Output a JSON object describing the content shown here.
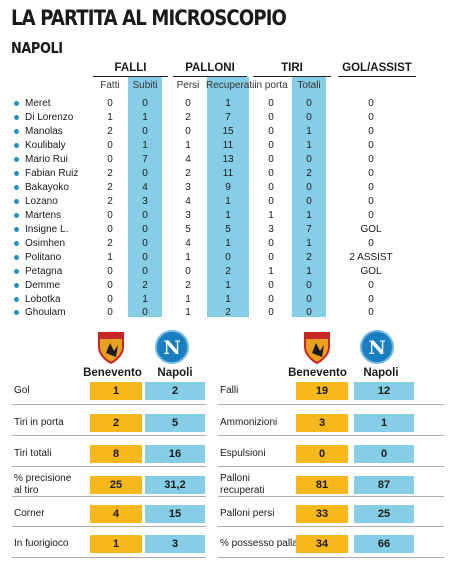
{
  "header": {
    "title": "LA PARTITA AL MICROSCOPIO",
    "team": "NAPOLI"
  },
  "table": {
    "groups": [
      "FALLI",
      "PALLONI",
      "TIRI",
      "GOL/ASSIST"
    ],
    "subheaders": [
      "Fatti",
      "Subiti",
      "Persi",
      "Recuperati",
      "in porta",
      "Totali"
    ],
    "players": [
      {
        "name": "Meret",
        "fatti": "0",
        "subiti": "0",
        "persi": "0",
        "recuperati": "1",
        "inporta": "0",
        "totali": "0",
        "gol": "0"
      },
      {
        "name": "Di Lorenzo",
        "fatti": "1",
        "subiti": "1",
        "persi": "2",
        "recuperati": "7",
        "inporta": "0",
        "totali": "0",
        "gol": "0"
      },
      {
        "name": "Manolas",
        "fatti": "2",
        "subiti": "0",
        "persi": "0",
        "recuperati": "15",
        "inporta": "0",
        "totali": "1",
        "gol": "0"
      },
      {
        "name": "Koulibaly",
        "fatti": "0",
        "subiti": "1",
        "persi": "1",
        "recuperati": "11",
        "inporta": "0",
        "totali": "1",
        "gol": "0"
      },
      {
        "name": "Mario Rui",
        "fatti": "0",
        "subiti": "7",
        "persi": "4",
        "recuperati": "13",
        "inporta": "0",
        "totali": "0",
        "gol": "0"
      },
      {
        "name": "Fabian Ruiz",
        "fatti": "2",
        "subiti": "0",
        "persi": "2",
        "recuperati": "11",
        "inporta": "0",
        "totali": "2",
        "gol": "0"
      },
      {
        "name": "Bakayoko",
        "fatti": "2",
        "subiti": "4",
        "persi": "3",
        "recuperati": "9",
        "inporta": "0",
        "totali": "0",
        "gol": "0"
      },
      {
        "name": "Lozano",
        "fatti": "2",
        "subiti": "3",
        "persi": "4",
        "recuperati": "1",
        "inporta": "0",
        "totali": "0",
        "gol": "0"
      },
      {
        "name": "Martens",
        "fatti": "0",
        "subiti": "0",
        "persi": "3",
        "recuperati": "1",
        "inporta": "1",
        "totali": "1",
        "gol": "0"
      },
      {
        "name": "Insigne L.",
        "fatti": "0",
        "subiti": "0",
        "persi": "5",
        "recuperati": "5",
        "inporta": "3",
        "totali": "7",
        "gol": "GOL"
      },
      {
        "name": "Osimhen",
        "fatti": "2",
        "subiti": "0",
        "persi": "4",
        "recuperati": "1",
        "inporta": "0",
        "totali": "1",
        "gol": "0"
      },
      {
        "name": "Politano",
        "fatti": "1",
        "subiti": "0",
        "persi": "1",
        "recuperati": "0",
        "inporta": "0",
        "totali": "2",
        "gol": "2 ASSIST"
      },
      {
        "name": "Petagna",
        "fatti": "0",
        "subiti": "0",
        "persi": "0",
        "recuperati": "2",
        "inporta": "1",
        "totali": "1",
        "gol": "GOL"
      },
      {
        "name": "Demme",
        "fatti": "0",
        "subiti": "2",
        "persi": "2",
        "recuperati": "1",
        "inporta": "0",
        "totali": "0",
        "gol": "0"
      },
      {
        "name": "Lobotka",
        "fatti": "0",
        "subiti": "1",
        "persi": "1",
        "recuperati": "1",
        "inporta": "0",
        "totali": "0",
        "gol": "0"
      },
      {
        "name": "Ghoulam",
        "fatti": "0",
        "subiti": "0",
        "persi": "1",
        "recuperati": "2",
        "inporta": "0",
        "totali": "0",
        "gol": "0"
      }
    ]
  },
  "teams": {
    "home": "Benevento",
    "away": "Napoli"
  },
  "stats_left": [
    {
      "label": "Gol",
      "home": "1",
      "away": "2"
    },
    {
      "label": "Tiri in porta",
      "home": "2",
      "away": "5"
    },
    {
      "label": "Tiri totali",
      "home": "8",
      "away": "16"
    },
    {
      "label": "% precisione al tiro",
      "label_1": "% precisione",
      "label_2": "al tiro",
      "home": "25",
      "away": "31,2"
    },
    {
      "label": "Corner",
      "home": "4",
      "away": "15"
    },
    {
      "label": "In fuorigioco",
      "home": "1",
      "away": "3"
    }
  ],
  "stats_right": [
    {
      "label": "Falli",
      "home": "19",
      "away": "12"
    },
    {
      "label": "Ammonizioni",
      "home": "3",
      "away": "1"
    },
    {
      "label": "Espulsioni",
      "home": "0",
      "away": "0"
    },
    {
      "label": "Palloni recuperati",
      "label_1": "Palloni",
      "label_2": "recuperati",
      "home": "81",
      "away": "87"
    },
    {
      "label": "Palloni persi",
      "home": "33",
      "away": "25"
    },
    {
      "label": "% possesso palla",
      "home": "34",
      "away": "66"
    }
  ],
  "colors": {
    "home_accent": "#f6b81b",
    "away_accent": "#86cde6",
    "bullet": "#2a8fbf"
  },
  "icons": {
    "home_logo": "benevento-crest-icon",
    "away_logo": "napoli-crest-icon"
  }
}
